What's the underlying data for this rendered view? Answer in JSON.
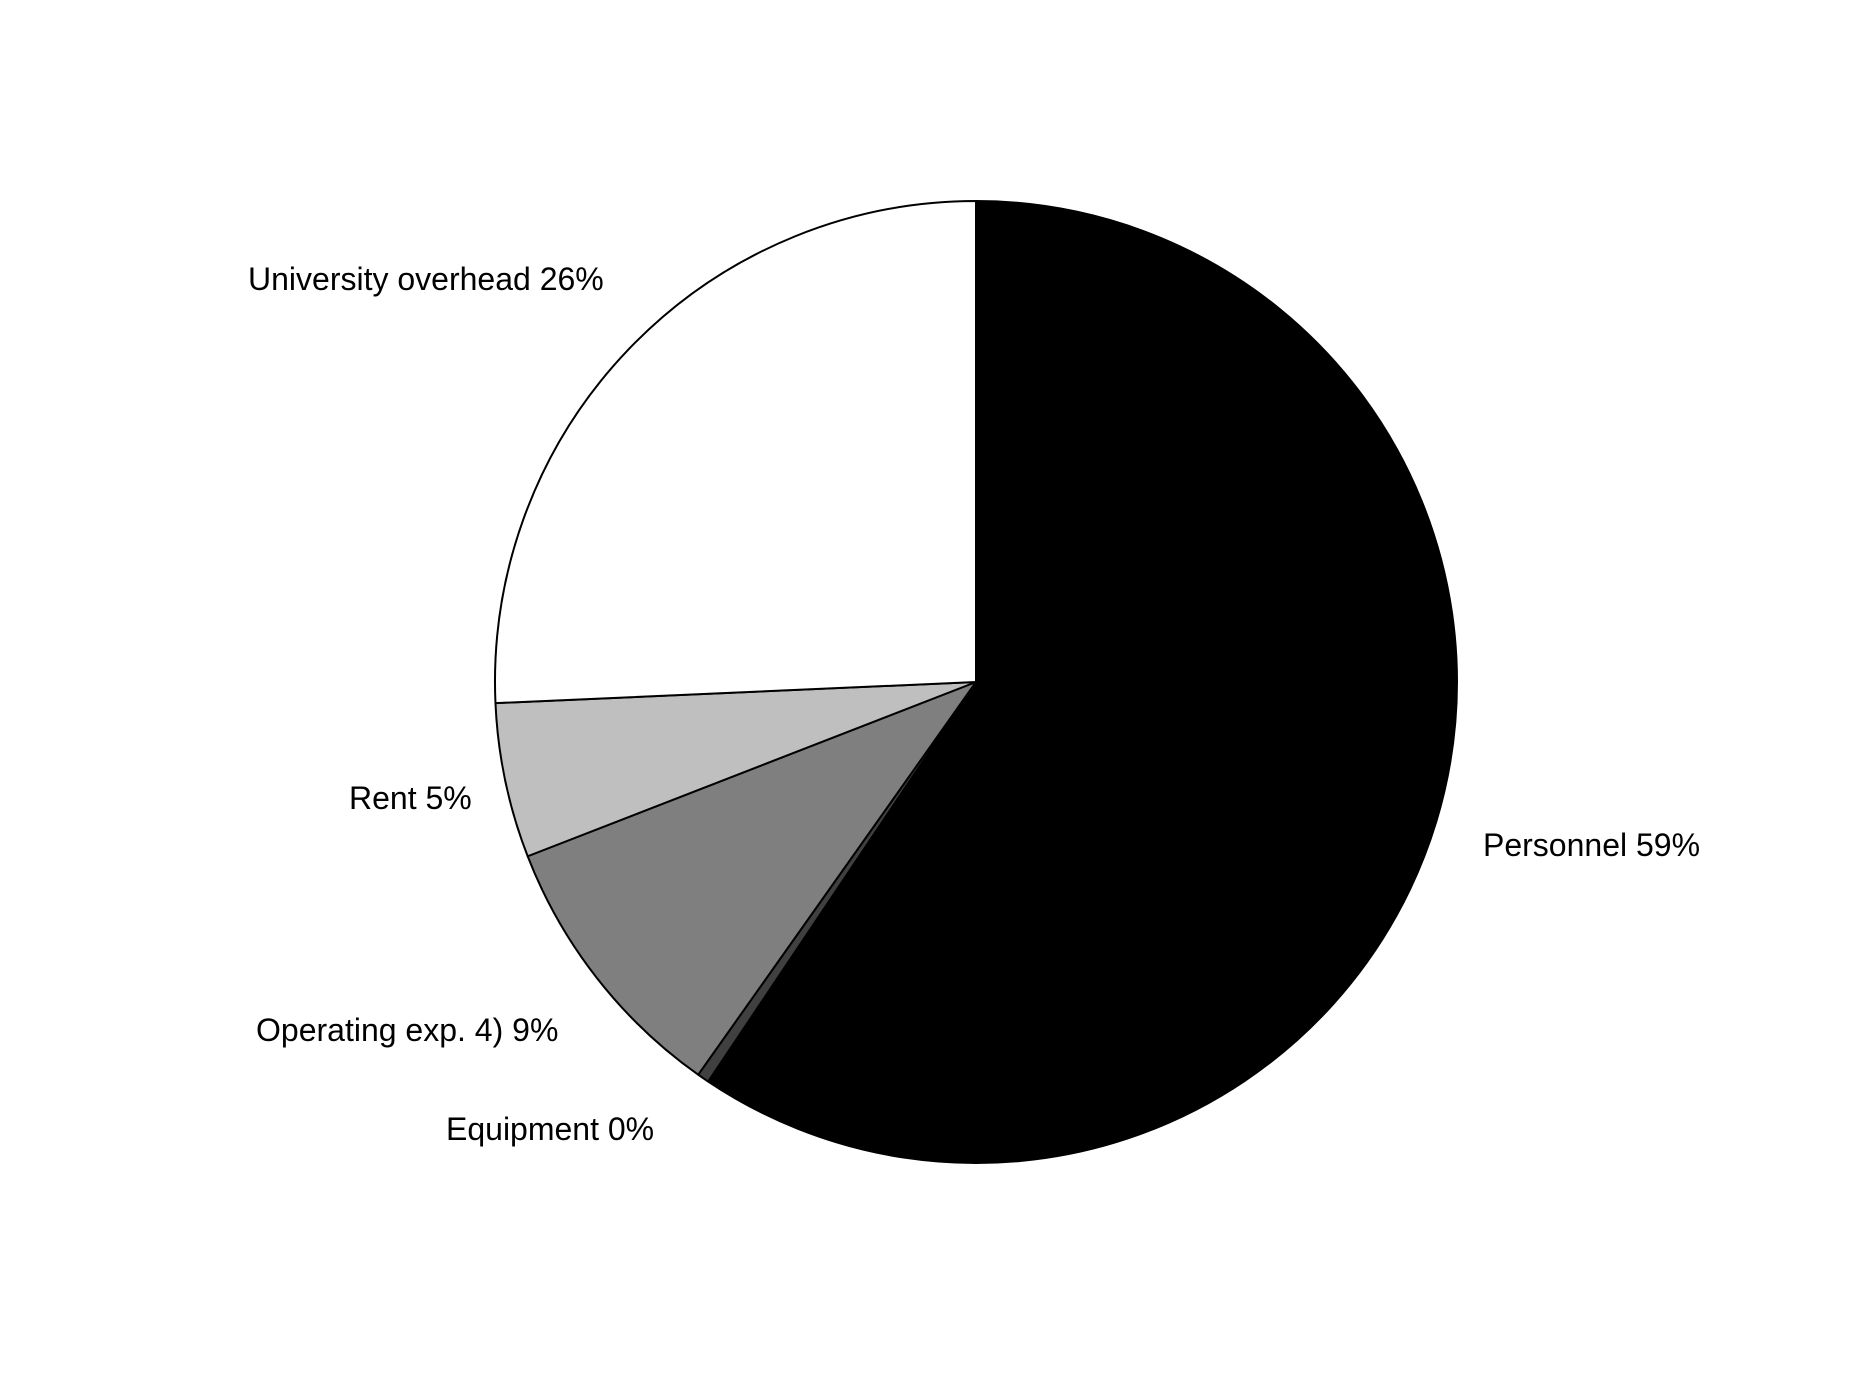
{
  "chart_data": {
    "type": "pie",
    "title": "",
    "start": "12 o'clock",
    "direction": "clockwise",
    "slices": [
      {
        "label": "Personnel 59%",
        "name": "Personnel",
        "value": 59.4,
        "color": "#000000"
      },
      {
        "label": "Equipment 0%",
        "name": "Equipment",
        "value": 0.4,
        "color": "#404040"
      },
      {
        "label": "Operating exp. 4) 9%",
        "name": "Operating exp. 4)",
        "value": 9.3,
        "color": "#7f7f7f"
      },
      {
        "label": "Rent 5%",
        "name": "Rent",
        "value": 5.2,
        "color": "#bfbfbf"
      },
      {
        "label": "University overhead 26%",
        "name": "University overhead",
        "value": 25.7,
        "color": "#ffffff"
      }
    ]
  }
}
